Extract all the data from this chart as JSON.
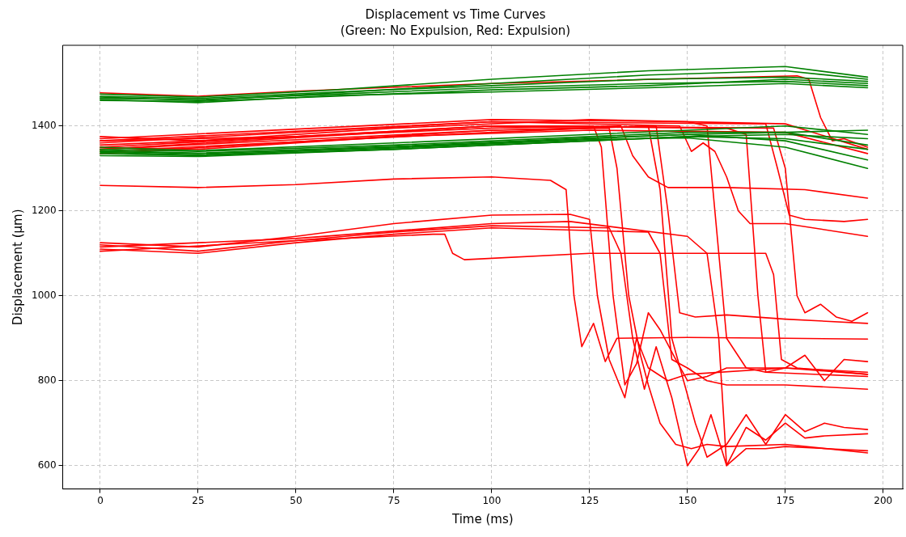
{
  "chart_data": {
    "type": "line",
    "title": "Displacement vs Time Curves",
    "subtitle": "(Green: No Expulsion, Red: Expulsion)",
    "xlabel": "Time (ms)",
    "ylabel": "Displacement (µm)",
    "xlim": [
      -9.6,
      205
    ],
    "xticks": [
      0,
      25,
      50,
      75,
      100,
      125,
      150,
      175,
      200
    ],
    "ylim": [
      545,
      1590
    ],
    "yticks": [
      600,
      800,
      1000,
      1200,
      1400
    ],
    "grid": true,
    "legend": false,
    "marker": "none",
    "line_style": "solid",
    "series": [
      {
        "color": "#008000",
        "x": [
          0,
          25,
          60,
          100,
          140,
          175,
          196
        ],
        "values": [
          1465,
          1462,
          1475,
          1490,
          1500,
          1505,
          1495
        ]
      },
      {
        "color": "#008000",
        "x": [
          0,
          25,
          60,
          100,
          140,
          175,
          196
        ],
        "values": [
          1470,
          1465,
          1480,
          1495,
          1510,
          1515,
          1505
        ]
      },
      {
        "color": "#008000",
        "x": [
          0,
          25,
          60,
          100,
          140,
          175,
          196
        ],
        "values": [
          1460,
          1458,
          1470,
          1485,
          1495,
          1510,
          1500
        ]
      },
      {
        "color": "#008000",
        "x": [
          0,
          25,
          60,
          100,
          140,
          175,
          196
        ],
        "values": [
          1475,
          1468,
          1485,
          1510,
          1530,
          1540,
          1515
        ]
      },
      {
        "color": "#008000",
        "x": [
          0,
          25,
          60,
          100,
          140,
          175,
          196
        ],
        "values": [
          1468,
          1460,
          1478,
          1500,
          1520,
          1530,
          1510
        ]
      },
      {
        "color": "#008000",
        "x": [
          0,
          25,
          60,
          100,
          140,
          175,
          196
        ],
        "values": [
          1462,
          1455,
          1472,
          1480,
          1490,
          1500,
          1490
        ]
      },
      {
        "color": "#008000",
        "x": [
          0,
          25,
          75,
          125,
          150,
          175,
          196
        ],
        "values": [
          1340,
          1335,
          1350,
          1370,
          1380,
          1385,
          1390
        ]
      },
      {
        "color": "#008000",
        "x": [
          0,
          25,
          75,
          125,
          150,
          175,
          196
        ],
        "values": [
          1335,
          1330,
          1345,
          1365,
          1375,
          1380,
          1370
        ]
      },
      {
        "color": "#008000",
        "x": [
          0,
          25,
          75,
          125,
          150,
          175,
          196
        ],
        "values": [
          1345,
          1340,
          1355,
          1375,
          1385,
          1385,
          1355
        ]
      },
      {
        "color": "#008000",
        "x": [
          0,
          25,
          75,
          125,
          150,
          175,
          196
        ],
        "values": [
          1330,
          1328,
          1345,
          1365,
          1375,
          1370,
          1345
        ]
      },
      {
        "color": "#008000",
        "x": [
          0,
          25,
          75,
          125,
          150,
          175,
          196
        ],
        "values": [
          1350,
          1342,
          1360,
          1380,
          1390,
          1400,
          1380
        ]
      },
      {
        "color": "#008000",
        "x": [
          0,
          25,
          75,
          125,
          150,
          175,
          196
        ],
        "values": [
          1338,
          1332,
          1348,
          1368,
          1372,
          1350,
          1300
        ]
      },
      {
        "color": "#008000",
        "x": [
          0,
          25,
          75,
          125,
          150,
          175,
          196
        ],
        "values": [
          1342,
          1336,
          1352,
          1372,
          1380,
          1365,
          1320
        ]
      },
      {
        "color": "#ff0000",
        "x": [
          0,
          25,
          50,
          100,
          150,
          178,
          181,
          184,
          187,
          190,
          196
        ],
        "values": [
          1478,
          1470,
          1482,
          1500,
          1512,
          1518,
          1510,
          1420,
          1365,
          1370,
          1350
        ]
      },
      {
        "color": "#ff0000",
        "x": [
          0,
          25,
          75,
          125,
          175,
          196
        ],
        "values": [
          1375,
          1365,
          1395,
          1415,
          1405,
          1345
        ]
      },
      {
        "color": "#ff0000",
        "x": [
          0,
          25,
          75,
          125,
          175,
          196
        ],
        "values": [
          1350,
          1345,
          1375,
          1390,
          1385,
          1335
        ]
      },
      {
        "color": "#ff0000",
        "x": [
          0,
          50,
          100,
          126,
          128,
          131,
          134,
          137,
          140,
          143,
          147,
          150,
          155,
          160,
          175,
          196
        ],
        "values": [
          1365,
          1375,
          1400,
          1400,
          1350,
          1000,
          790,
          840,
          960,
          920,
          850,
          800,
          810,
          830,
          830,
          815
        ]
      },
      {
        "color": "#ff0000",
        "x": [
          0,
          100,
          130,
          132,
          135,
          138,
          140,
          143,
          147,
          151,
          155,
          160,
          175,
          196
        ],
        "values": [
          1345,
          1390,
          1395,
          1300,
          1000,
          860,
          790,
          700,
          650,
          640,
          650,
          645,
          650,
          630
        ]
      },
      {
        "color": "#ff0000",
        "x": [
          0,
          100,
          133,
          136,
          140,
          145,
          160,
          180,
          196
        ],
        "values": [
          1355,
          1395,
          1400,
          1330,
          1280,
          1255,
          1255,
          1250,
          1230
        ]
      },
      {
        "color": "#ff0000",
        "x": [
          0,
          100,
          140,
          143,
          146,
          149,
          152,
          155,
          160,
          165,
          170,
          175,
          180,
          185,
          190,
          196
        ],
        "values": [
          1340,
          1385,
          1400,
          1250,
          900,
          800,
          700,
          620,
          650,
          720,
          650,
          720,
          680,
          700,
          690,
          685
        ]
      },
      {
        "color": "#ff0000",
        "x": [
          0,
          100,
          142,
          145,
          148,
          152,
          160,
          175,
          196
        ],
        "values": [
          1335,
          1390,
          1400,
          1200,
          960,
          950,
          955,
          945,
          935
        ]
      },
      {
        "color": "#ff0000",
        "x": [
          0,
          100,
          148,
          151,
          154,
          157,
          160,
          163,
          166,
          175,
          196
        ],
        "values": [
          1360,
          1410,
          1400,
          1340,
          1360,
          1340,
          1280,
          1200,
          1170,
          1170,
          1140
        ]
      },
      {
        "color": "#ff0000",
        "x": [
          0,
          100,
          150,
          155,
          158,
          160,
          165,
          170,
          196
        ],
        "values": [
          1370,
          1415,
          1410,
          1400,
          1100,
          900,
          830,
          820,
          810
        ]
      },
      {
        "color": "#ff0000",
        "x": [
          0,
          100,
          160,
          165,
          168,
          170,
          175,
          196
        ],
        "values": [
          1345,
          1400,
          1395,
          1380,
          1000,
          820,
          830,
          820
        ]
      },
      {
        "color": "#ff0000",
        "x": [
          0,
          100,
          170,
          173,
          176,
          180,
          190,
          196
        ],
        "values": [
          1365,
          1410,
          1405,
          1300,
          1190,
          1180,
          1175,
          1180
        ]
      },
      {
        "color": "#ff0000",
        "x": [
          0,
          100,
          172,
          175,
          178,
          180,
          184,
          188,
          192,
          196
        ],
        "values": [
          1350,
          1400,
          1395,
          1300,
          1000,
          960,
          980,
          950,
          940,
          960
        ]
      },
      {
        "color": "#ff0000",
        "x": [
          0,
          25,
          50,
          75,
          100,
          115,
          119,
          121,
          123,
          126,
          129,
          132,
          150,
          175,
          196
        ],
        "values": [
          1260,
          1255,
          1262,
          1275,
          1280,
          1272,
          1250,
          1000,
          880,
          935,
          845,
          900,
          902,
          900,
          898
        ]
      },
      {
        "color": "#ff0000",
        "x": [
          0,
          25,
          50,
          75,
          100,
          120,
          125,
          127,
          130,
          134,
          137,
          140,
          145,
          150,
          175,
          180,
          185,
          190,
          196
        ],
        "values": [
          1125,
          1115,
          1140,
          1170,
          1190,
          1192,
          1180,
          1000,
          850,
          760,
          900,
          830,
          800,
          815,
          830,
          860,
          800,
          850,
          845
        ]
      },
      {
        "color": "#ff0000",
        "x": [
          0,
          25,
          50,
          75,
          100,
          130,
          133,
          136,
          139,
          142,
          146,
          150,
          153,
          156,
          160,
          165,
          170,
          175,
          180,
          185,
          196
        ],
        "values": [
          1120,
          1105,
          1130,
          1150,
          1165,
          1160,
          1100,
          900,
          780,
          880,
          760,
          600,
          640,
          720,
          600,
          690,
          660,
          700,
          665,
          670,
          675
        ]
      },
      {
        "color": "#ff0000",
        "x": [
          0,
          25,
          50,
          75,
          100,
          140,
          143,
          146,
          150,
          155,
          160,
          175,
          196
        ],
        "values": [
          1110,
          1100,
          1125,
          1145,
          1160,
          1150,
          1100,
          850,
          830,
          800,
          790,
          790,
          780
        ]
      },
      {
        "color": "#ff0000",
        "x": [
          0,
          50,
          85,
          88,
          90,
          93,
          125,
          170,
          172,
          174,
          178,
          196
        ],
        "values": [
          1105,
          1130,
          1145,
          1145,
          1100,
          1085,
          1100,
          1100,
          1050,
          850,
          830,
          815
        ]
      },
      {
        "color": "#ff0000",
        "x": [
          0,
          50,
          100,
          120,
          150,
          155,
          158,
          160,
          165,
          170,
          175,
          196
        ],
        "values": [
          1115,
          1135,
          1170,
          1175,
          1140,
          1100,
          900,
          600,
          640,
          640,
          645,
          635
        ]
      }
    ]
  }
}
